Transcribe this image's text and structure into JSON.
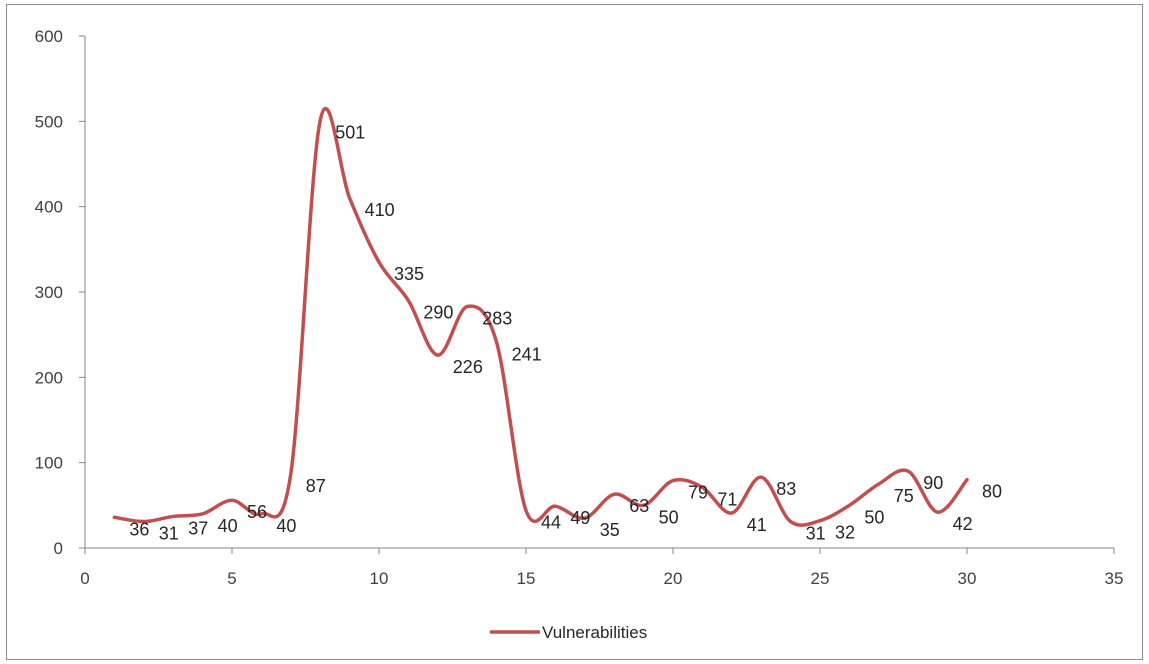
{
  "chart_data": {
    "type": "line",
    "title": "",
    "xlabel": "",
    "ylabel": "",
    "xlim": [
      0,
      35
    ],
    "ylim": [
      0,
      600
    ],
    "xticks": [
      0,
      5,
      10,
      15,
      20,
      25,
      30,
      35
    ],
    "yticks": [
      0,
      100,
      200,
      300,
      400,
      500,
      600
    ],
    "smooth": true,
    "grid": false,
    "legend_position": "bottom",
    "colors": {
      "series": "#c0504d",
      "axis": "#868686",
      "frame": "#8c8c8c"
    },
    "x": [
      1,
      2,
      3,
      4,
      5,
      6,
      7,
      8,
      9,
      10,
      11,
      12,
      13,
      14,
      15,
      16,
      17,
      18,
      19,
      20,
      21,
      22,
      23,
      24,
      25,
      26,
      27,
      28,
      29,
      30
    ],
    "series": [
      {
        "name": "Vulnerabilities",
        "values": [
          36,
          31,
          37,
          40,
          56,
          40,
          87,
          501,
          410,
          335,
          290,
          226,
          283,
          241,
          44,
          49,
          35,
          63,
          50,
          79,
          71,
          41,
          83,
          31,
          32,
          50,
          75,
          90,
          42,
          80
        ]
      }
    ]
  }
}
